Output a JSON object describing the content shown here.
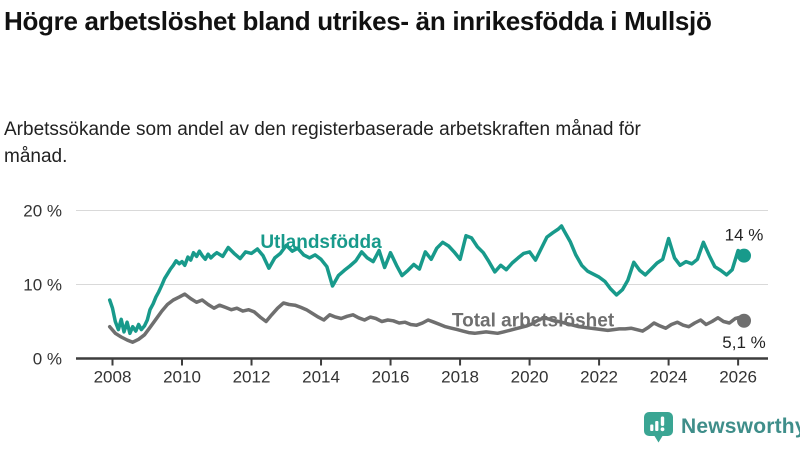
{
  "header": {
    "title": "Högre arbetslöshet bland utrikes- än inrikesfödda i Mullsjö",
    "subtitle": "Arbetssökande som andel av den registerbaserade arbetskraften månad för månad."
  },
  "footer": {
    "brand": "Newsworthy",
    "logo_icon": "bar-chart-speech-bubble-icon",
    "brand_text_color": "#3f8e8a",
    "icon_color": "#3aa593"
  },
  "chart_data": {
    "type": "line",
    "title": "",
    "xlabel": "",
    "ylabel": "",
    "grid": "horizontal-gridlines-at-10-and-20",
    "legend_position": "labels-on-lines",
    "xlim": [
      2006.95,
      2026.86
    ],
    "ylim": [
      0,
      20
    ],
    "axis_color": "#3d3d3d",
    "gridline_color": "#d9d9d9",
    "tick_label_color": "#333333",
    "annotation_color": "#222222",
    "y_ticks": [
      {
        "value": 0,
        "label": "0 %"
      },
      {
        "value": 10,
        "label": "10 %"
      },
      {
        "value": 20,
        "label": "20 %"
      }
    ],
    "x_ticks": [
      {
        "value": 2008,
        "label": "2008"
      },
      {
        "value": 2010,
        "label": "2010"
      },
      {
        "value": 2012,
        "label": "2012"
      },
      {
        "value": 2014,
        "label": "2014"
      },
      {
        "value": 2016,
        "label": "2016"
      },
      {
        "value": 2018,
        "label": "2018"
      },
      {
        "value": 2020,
        "label": "2020"
      },
      {
        "value": 2022,
        "label": "2022"
      },
      {
        "value": 2024,
        "label": "2024"
      },
      {
        "value": 2026,
        "label": "2026"
      }
    ],
    "series": [
      {
        "name": "Utlandsfödda",
        "color": "#189a8b",
        "end_label": "14 %",
        "end_label_position": "above",
        "label_anchor": {
          "x": 2014.0,
          "y": 15.9
        },
        "points": [
          [
            2007.92,
            7.9
          ],
          [
            2008.0,
            6.8
          ],
          [
            2008.08,
            5.0
          ],
          [
            2008.17,
            3.9
          ],
          [
            2008.25,
            5.3
          ],
          [
            2008.33,
            3.6
          ],
          [
            2008.42,
            4.9
          ],
          [
            2008.5,
            3.4
          ],
          [
            2008.58,
            4.3
          ],
          [
            2008.67,
            3.7
          ],
          [
            2008.75,
            4.6
          ],
          [
            2008.83,
            3.9
          ],
          [
            2008.92,
            4.4
          ],
          [
            2009.0,
            5.2
          ],
          [
            2009.08,
            6.6
          ],
          [
            2009.17,
            7.4
          ],
          [
            2009.25,
            8.3
          ],
          [
            2009.33,
            9.0
          ],
          [
            2009.42,
            9.9
          ],
          [
            2009.5,
            10.8
          ],
          [
            2009.58,
            11.4
          ],
          [
            2009.67,
            12.1
          ],
          [
            2009.75,
            12.6
          ],
          [
            2009.83,
            13.2
          ],
          [
            2009.92,
            12.8
          ],
          [
            2010.0,
            13.1
          ],
          [
            2010.08,
            12.6
          ],
          [
            2010.17,
            13.7
          ],
          [
            2010.25,
            13.3
          ],
          [
            2010.33,
            14.3
          ],
          [
            2010.42,
            13.8
          ],
          [
            2010.5,
            14.5
          ],
          [
            2010.58,
            13.9
          ],
          [
            2010.67,
            13.4
          ],
          [
            2010.75,
            14.1
          ],
          [
            2010.83,
            13.6
          ],
          [
            2010.92,
            14.0
          ],
          [
            2011.0,
            14.3
          ],
          [
            2011.17,
            13.8
          ],
          [
            2011.33,
            15.0
          ],
          [
            2011.5,
            14.2
          ],
          [
            2011.67,
            13.5
          ],
          [
            2011.83,
            14.4
          ],
          [
            2012.0,
            14.2
          ],
          [
            2012.17,
            14.8
          ],
          [
            2012.33,
            13.9
          ],
          [
            2012.5,
            12.2
          ],
          [
            2012.67,
            13.6
          ],
          [
            2012.83,
            14.2
          ],
          [
            2013.0,
            15.3
          ],
          [
            2013.17,
            14.5
          ],
          [
            2013.33,
            14.9
          ],
          [
            2013.5,
            14.0
          ],
          [
            2013.67,
            13.6
          ],
          [
            2013.83,
            14.0
          ],
          [
            2014.0,
            13.4
          ],
          [
            2014.17,
            12.4
          ],
          [
            2014.33,
            9.8
          ],
          [
            2014.5,
            11.2
          ],
          [
            2014.67,
            11.9
          ],
          [
            2014.83,
            12.5
          ],
          [
            2015.0,
            13.2
          ],
          [
            2015.17,
            14.4
          ],
          [
            2015.33,
            13.6
          ],
          [
            2015.5,
            13.1
          ],
          [
            2015.67,
            14.6
          ],
          [
            2015.83,
            12.3
          ],
          [
            2016.0,
            14.3
          ],
          [
            2016.17,
            12.6
          ],
          [
            2016.33,
            11.2
          ],
          [
            2016.5,
            11.9
          ],
          [
            2016.67,
            12.7
          ],
          [
            2016.83,
            12.1
          ],
          [
            2017.0,
            14.4
          ],
          [
            2017.17,
            13.4
          ],
          [
            2017.33,
            14.9
          ],
          [
            2017.5,
            15.7
          ],
          [
            2017.67,
            15.2
          ],
          [
            2017.83,
            14.4
          ],
          [
            2018.0,
            13.4
          ],
          [
            2018.17,
            16.6
          ],
          [
            2018.33,
            16.3
          ],
          [
            2018.5,
            15.1
          ],
          [
            2018.67,
            14.3
          ],
          [
            2018.83,
            13.1
          ],
          [
            2019.0,
            11.7
          ],
          [
            2019.17,
            12.6
          ],
          [
            2019.33,
            12.0
          ],
          [
            2019.5,
            12.9
          ],
          [
            2019.67,
            13.6
          ],
          [
            2019.83,
            14.2
          ],
          [
            2020.0,
            14.4
          ],
          [
            2020.17,
            13.3
          ],
          [
            2020.33,
            14.8
          ],
          [
            2020.5,
            16.4
          ],
          [
            2020.67,
            17.0
          ],
          [
            2020.83,
            17.5
          ],
          [
            2020.92,
            17.9
          ],
          [
            2021.0,
            17.2
          ],
          [
            2021.17,
            15.8
          ],
          [
            2021.33,
            14.0
          ],
          [
            2021.5,
            12.6
          ],
          [
            2021.67,
            11.8
          ],
          [
            2021.83,
            11.4
          ],
          [
            2022.0,
            11.0
          ],
          [
            2022.17,
            10.4
          ],
          [
            2022.33,
            9.4
          ],
          [
            2022.5,
            8.6
          ],
          [
            2022.67,
            9.3
          ],
          [
            2022.83,
            10.6
          ],
          [
            2023.0,
            13.0
          ],
          [
            2023.17,
            11.9
          ],
          [
            2023.33,
            11.3
          ],
          [
            2023.5,
            12.1
          ],
          [
            2023.67,
            12.9
          ],
          [
            2023.83,
            13.4
          ],
          [
            2024.0,
            16.2
          ],
          [
            2024.17,
            13.6
          ],
          [
            2024.33,
            12.6
          ],
          [
            2024.5,
            13.1
          ],
          [
            2024.67,
            12.8
          ],
          [
            2024.83,
            13.4
          ],
          [
            2025.0,
            15.7
          ],
          [
            2025.17,
            13.9
          ],
          [
            2025.33,
            12.4
          ],
          [
            2025.5,
            11.9
          ],
          [
            2025.67,
            11.3
          ],
          [
            2025.83,
            12.0
          ],
          [
            2026.0,
            14.6
          ],
          [
            2026.17,
            13.9
          ]
        ]
      },
      {
        "name": "Total arbetslöshet",
        "color": "#6f6f6f",
        "end_label": "5,1 %",
        "end_label_position": "below",
        "label_anchor": {
          "x": 2020.1,
          "y": 5.3
        },
        "points": [
          [
            2007.92,
            4.3
          ],
          [
            2008.08,
            3.4
          ],
          [
            2008.25,
            2.9
          ],
          [
            2008.42,
            2.5
          ],
          [
            2008.58,
            2.2
          ],
          [
            2008.75,
            2.6
          ],
          [
            2008.92,
            3.2
          ],
          [
            2009.08,
            4.2
          ],
          [
            2009.25,
            5.3
          ],
          [
            2009.42,
            6.4
          ],
          [
            2009.58,
            7.3
          ],
          [
            2009.75,
            7.9
          ],
          [
            2009.92,
            8.3
          ],
          [
            2010.08,
            8.7
          ],
          [
            2010.25,
            8.1
          ],
          [
            2010.42,
            7.6
          ],
          [
            2010.58,
            7.9
          ],
          [
            2010.75,
            7.3
          ],
          [
            2010.92,
            6.8
          ],
          [
            2011.08,
            7.2
          ],
          [
            2011.25,
            6.9
          ],
          [
            2011.42,
            6.6
          ],
          [
            2011.58,
            6.8
          ],
          [
            2011.75,
            6.4
          ],
          [
            2011.92,
            6.6
          ],
          [
            2012.08,
            6.3
          ],
          [
            2012.25,
            5.6
          ],
          [
            2012.42,
            5.0
          ],
          [
            2012.58,
            5.9
          ],
          [
            2012.75,
            6.8
          ],
          [
            2012.92,
            7.5
          ],
          [
            2013.08,
            7.3
          ],
          [
            2013.25,
            7.2
          ],
          [
            2013.42,
            6.9
          ],
          [
            2013.58,
            6.6
          ],
          [
            2013.75,
            6.1
          ],
          [
            2013.92,
            5.6
          ],
          [
            2014.08,
            5.2
          ],
          [
            2014.25,
            5.9
          ],
          [
            2014.42,
            5.6
          ],
          [
            2014.58,
            5.4
          ],
          [
            2014.75,
            5.7
          ],
          [
            2014.92,
            5.9
          ],
          [
            2015.08,
            5.5
          ],
          [
            2015.25,
            5.2
          ],
          [
            2015.42,
            5.6
          ],
          [
            2015.58,
            5.4
          ],
          [
            2015.75,
            5.0
          ],
          [
            2015.92,
            5.2
          ],
          [
            2016.08,
            5.1
          ],
          [
            2016.25,
            4.8
          ],
          [
            2016.42,
            4.9
          ],
          [
            2016.58,
            4.6
          ],
          [
            2016.75,
            4.5
          ],
          [
            2016.92,
            4.8
          ],
          [
            2017.08,
            5.2
          ],
          [
            2017.25,
            4.9
          ],
          [
            2017.42,
            4.6
          ],
          [
            2017.58,
            4.3
          ],
          [
            2017.75,
            4.1
          ],
          [
            2017.92,
            3.9
          ],
          [
            2018.08,
            3.7
          ],
          [
            2018.25,
            3.5
          ],
          [
            2018.42,
            3.4
          ],
          [
            2018.58,
            3.5
          ],
          [
            2018.75,
            3.6
          ],
          [
            2018.92,
            3.5
          ],
          [
            2019.08,
            3.4
          ],
          [
            2019.25,
            3.6
          ],
          [
            2019.42,
            3.8
          ],
          [
            2019.58,
            4.0
          ],
          [
            2019.75,
            4.2
          ],
          [
            2019.92,
            4.4
          ],
          [
            2020.08,
            4.7
          ],
          [
            2020.25,
            5.2
          ],
          [
            2020.42,
            5.5
          ],
          [
            2020.58,
            5.3
          ],
          [
            2020.75,
            5.1
          ],
          [
            2020.92,
            4.9
          ],
          [
            2021.08,
            4.7
          ],
          [
            2021.25,
            4.5
          ],
          [
            2021.42,
            4.3
          ],
          [
            2021.58,
            4.2
          ],
          [
            2021.75,
            4.1
          ],
          [
            2021.92,
            4.0
          ],
          [
            2022.08,
            3.9
          ],
          [
            2022.25,
            3.8
          ],
          [
            2022.42,
            3.9
          ],
          [
            2022.58,
            4.0
          ],
          [
            2022.75,
            4.0
          ],
          [
            2022.92,
            4.1
          ],
          [
            2023.08,
            3.9
          ],
          [
            2023.25,
            3.7
          ],
          [
            2023.42,
            4.2
          ],
          [
            2023.58,
            4.8
          ],
          [
            2023.75,
            4.4
          ],
          [
            2023.92,
            4.1
          ],
          [
            2024.08,
            4.6
          ],
          [
            2024.25,
            4.9
          ],
          [
            2024.42,
            4.5
          ],
          [
            2024.58,
            4.3
          ],
          [
            2024.75,
            4.8
          ],
          [
            2024.92,
            5.2
          ],
          [
            2025.08,
            4.6
          ],
          [
            2025.25,
            5.0
          ],
          [
            2025.42,
            5.5
          ],
          [
            2025.58,
            5.0
          ],
          [
            2025.75,
            4.8
          ],
          [
            2025.92,
            5.4
          ],
          [
            2026.08,
            5.6
          ],
          [
            2026.17,
            5.1
          ]
        ]
      }
    ]
  }
}
